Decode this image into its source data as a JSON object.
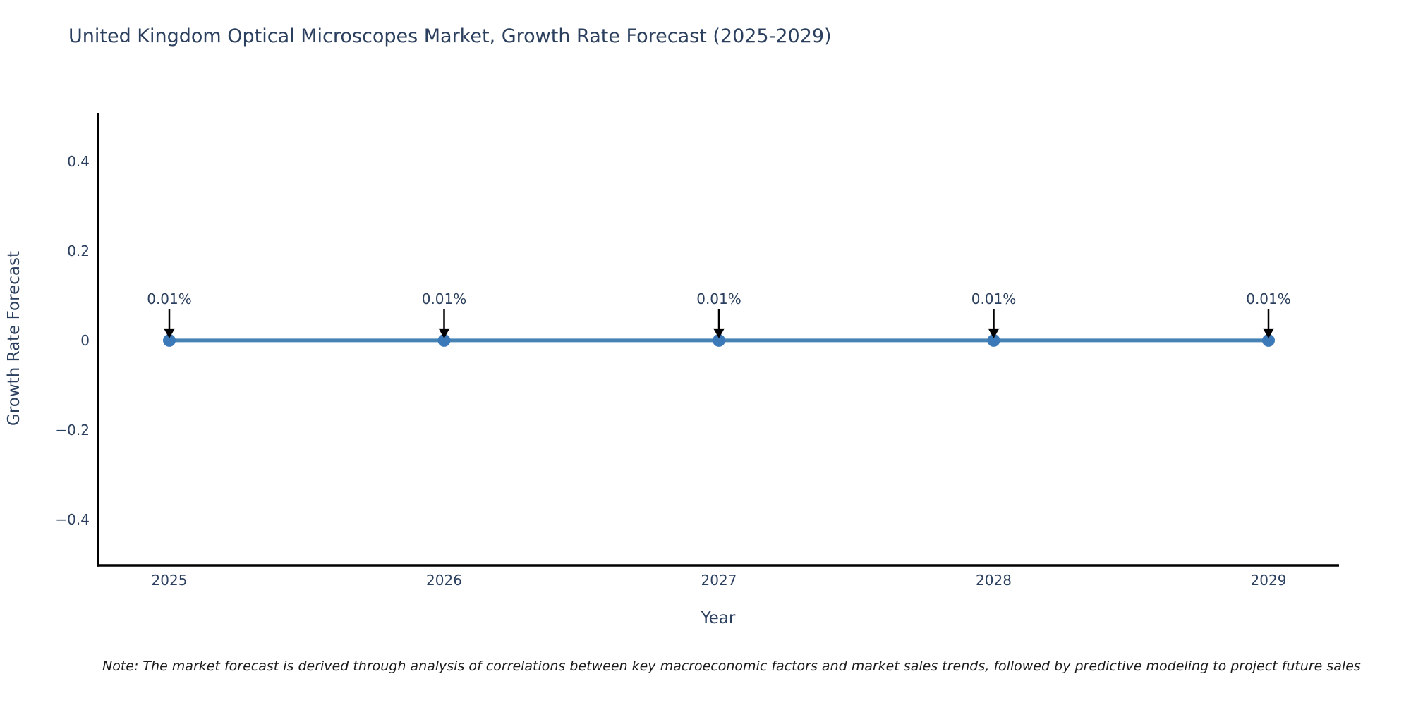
{
  "title": "United Kingdom Optical Microscopes Market, Growth Rate Forecast (2025-2029)",
  "note": "Note: The market forecast is derived through analysis of correlations between key macroeconomic factors and market sales trends, followed by predictive modeling to project future sales",
  "chart_data": {
    "type": "line",
    "x": [
      2025,
      2026,
      2027,
      2028,
      2029
    ],
    "series": [
      {
        "name": "Growth Rate Forecast",
        "values": [
          0.0001,
          0.0001,
          0.0001,
          0.0001,
          0.0001
        ]
      }
    ],
    "annotations": [
      "0.01%",
      "0.01%",
      "0.01%",
      "0.01%",
      "0.01%"
    ],
    "title": "United Kingdom Optical Microscopes Market, Growth Rate Forecast (2025-2029)",
    "xlabel": "Year",
    "ylabel": "Growth Rate Forecast",
    "xtick_labels": [
      "2025",
      "2026",
      "2027",
      "2028",
      "2029"
    ],
    "ytick_values": [
      0.4,
      0.2,
      0,
      -0.2,
      -0.4
    ],
    "ytick_labels": [
      "0.4",
      "0.2",
      "0",
      "−0.2",
      "−0.4"
    ],
    "ylim": [
      -0.5,
      0.5
    ],
    "xlim": [
      2024.74,
      2029.26
    ],
    "grid": false,
    "legend_position": "none",
    "colors": {
      "line": "#4682B4",
      "marker": "#3c79b8",
      "arrow": "#000000",
      "axis": "#000000",
      "tick_text": "#2b3f5e",
      "annotation_text": "#2b3f5e"
    }
  }
}
